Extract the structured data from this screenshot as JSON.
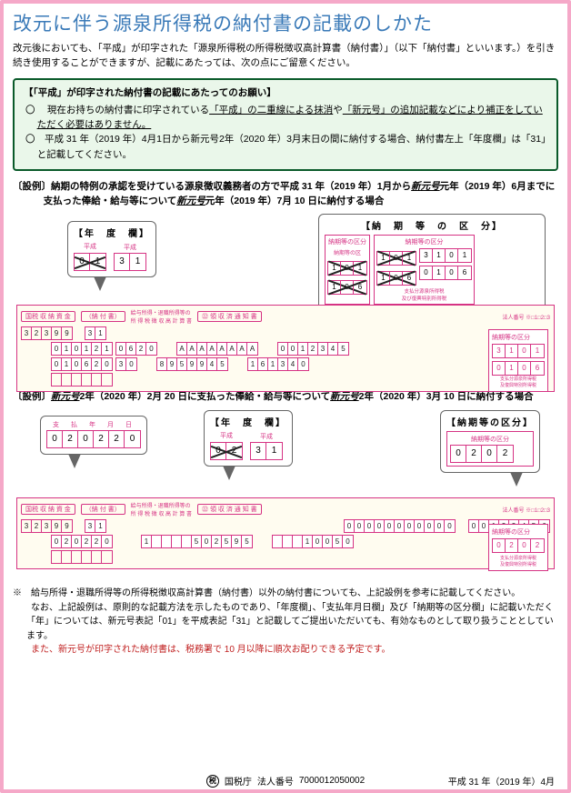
{
  "title": "改元に伴う源泉所得税の納付書の記載のしかた",
  "intro": "改元後においても、「平成」が印字された「源泉所得税の所得税徴収高計算書（納付書）」（以下「納付書」といいます。）を引き続き使用することができますが、記載にあたっては、次の点にご留意ください。",
  "notice": {
    "title": "【「平成」が印字された納付書の記載にあたってのお願い】",
    "items": [
      {
        "prefix": "現在お持ちの納付書に印字されている",
        "ul1": "「平成」の二重線による抹消",
        "mid": "や",
        "ul2": "「新元号」の追加記載などにより補正をしていただく必要はありません。",
        "suffix": ""
      },
      {
        "text": "平成 31 年（2019 年）4月1日から新元号2年（2020 年）3月末日の間に納付する場合、納付書左上「年度欄」は「31」と記載してください。"
      }
    ]
  },
  "example1": {
    "label": "〔設例〕納期の特例の承認を受けている源泉徴収義務者の方で平成 31 年（2019 年）1月から",
    "ul_era1": "新元号",
    "label2": "元年（2019 年）6月までに支払った俸給・給与等について",
    "ul_era2": "新元号",
    "label3": "元年（2019 年）7月 10 日に納付する場合",
    "year_box": {
      "title": "【年　度　欄】",
      "heisei_label": "平成",
      "heisei_cells": [
        "0",
        "1"
      ],
      "heisei2_cells": [
        "3",
        "1"
      ]
    },
    "kubun_box": {
      "title": "【納　期　等　の　区　分】",
      "kubun_label": "納期等の区分",
      "left_top": [
        "1",
        "0",
        "1"
      ],
      "left_bot": [
        "1",
        "0",
        "6"
      ],
      "right_top": [
        "3",
        "1",
        "0",
        "1"
      ],
      "right_bot": [
        "0",
        "1",
        "0",
        "6"
      ]
    },
    "slip": {
      "tax_label": "国税 収 納 資 金",
      "form1": "（納 付 書）",
      "form2": "㉒ 領 収 済 通 知 書",
      "code_label": "法人番号",
      "code": [
        "3",
        "2",
        "3",
        "9",
        "9"
      ],
      "year_block": [
        "3",
        "1"
      ],
      "row1_a": [
        "0",
        "1",
        "0",
        "1",
        "2",
        "1"
      ],
      "row1_b": [
        "0",
        "6",
        "2",
        "0"
      ],
      "row1_c": [
        "A",
        "A",
        "A",
        "A",
        "A",
        "A",
        "A",
        "A"
      ],
      "row1_d": [
        "0",
        "0",
        "1",
        "2",
        "3",
        "4",
        "5"
      ],
      "row2_a": [
        "0",
        "1",
        "0",
        "6",
        "2",
        "0"
      ],
      "row2_b": [
        "3",
        "0"
      ],
      "row2_c": [
        "8",
        "9",
        "5",
        "9",
        "9",
        "4",
        "5"
      ],
      "row2_d": [
        "1",
        "6",
        "1",
        "3",
        "4",
        "0"
      ],
      "mini_top": [
        "3",
        "1",
        "0",
        "1"
      ],
      "mini_bot": [
        "0",
        "1",
        "0",
        "6"
      ]
    }
  },
  "example2": {
    "label": "〔設例〕",
    "ul_era1": "新元号",
    "label2": "2年（2020 年）2月 20 日に支払った俸給・給与等について",
    "ul_era2": "新元号",
    "label3": "2年（2020 年）3月 10 日に納付する場合",
    "pay_box": {
      "title": "支　払　年　月　日",
      "cells": [
        "0",
        "2",
        "0",
        "2",
        "2",
        "0"
      ]
    },
    "year_box": {
      "title": "【年　度　欄】",
      "heisei_label": "平成",
      "heisei_cells": [
        "0",
        "2"
      ],
      "heisei2_cells": [
        "3",
        "1"
      ]
    },
    "kubun_box": {
      "title": "【納期等の区分】",
      "kubun_label": "納期等の区分",
      "cells": [
        "0",
        "2",
        "0",
        "2"
      ]
    },
    "slip": {
      "tax_label": "国税 収 納 資 金",
      "form1": "（納 付 書）",
      "form2": "㉒ 領 収 済 通 知 書",
      "code": [
        "3",
        "2",
        "3",
        "9",
        "9"
      ],
      "year_block": [
        "3",
        "1"
      ],
      "row1_a": [
        "0",
        "2",
        "0",
        "2",
        "2",
        "0"
      ],
      "row1_b": [
        ""
      ],
      "row1_c": [
        "1",
        "",
        "",
        "",
        "",
        "5",
        "0",
        "2",
        "5",
        "9",
        "5"
      ],
      "row1_d": [
        "",
        "",
        "",
        "1",
        "0",
        "0",
        "5",
        "0"
      ],
      "row2_c": [
        "0",
        "0",
        "0",
        "0",
        "0",
        "0",
        "0",
        "0",
        "0",
        "0",
        "0"
      ],
      "row2_d2": [
        "0",
        "0",
        "1",
        "2",
        "3",
        "4",
        "5",
        "6"
      ],
      "mini": [
        "0",
        "2",
        "0",
        "2"
      ]
    }
  },
  "footnotes": {
    "note1": "※　給与所得・退職所得等の所得税徴収高計算書（納付書）以外の納付書についても、上記設例を参考に記載してください。",
    "note2": "　　なお、上記設例は、原則的な記載方法を示したものであり、「年度欄」、「支払年月日欄」及び「納期等の区分欄」に記載いただく「年」については、新元号表記「01」を平成表記「31」と記載してご提出いただいても、有効なものとして取り扱うこととしています。",
    "note3": "　　また、新元号が印字された納付書は、税務署で 10 月以降に順次お配りできる予定です。"
  },
  "footer": {
    "agency": "国税庁",
    "corp_label": "法人番号",
    "corp_no": "7000012050002",
    "date": "平成 31 年（2019 年）4月"
  },
  "colors": {
    "title_blue": "#3a7ab8",
    "notice_green": "#0a5a2a",
    "notice_bg": "#eaf7ea",
    "form_pink": "#d63384",
    "form_bg": "#fffcf0",
    "border_pink": "#f5a8c8",
    "red": "#c02020"
  }
}
